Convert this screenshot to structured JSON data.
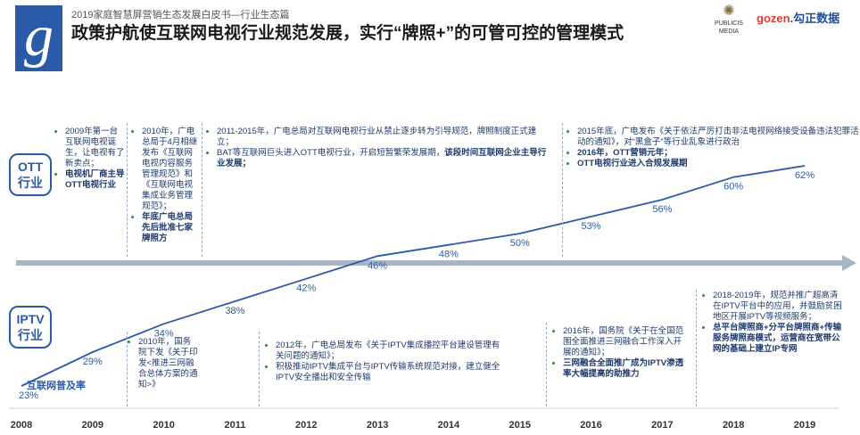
{
  "header": {
    "subtitle": "2019家庭智慧屏营销生态发展白皮书—行业生态篇",
    "title": "政策护航使互联网电视行业规范发展，实行“牌照+”的可管可控的管理模式",
    "logo_letter": "g",
    "brand1_line1": "PUBLICIS",
    "brand1_line2": "MEDIA",
    "brand2_mark": "gozen",
    "brand2_text": ".勾正数据"
  },
  "labels": {
    "ott": "OTT\n行业",
    "iptv": "IPTV\n行业"
  },
  "annotations": {
    "ott_2009": {
      "text1": "2009年第一台互联网电视诞生，让电视有了新卖点；",
      "text2_bold": "电视机厂商主导OTT电视行业"
    },
    "ott_2010": {
      "text1": "2010年，广电总局于4月相继发布《互联网电视内容服务管理规范》和《互联网电视集成业务管理规范》；",
      "text2_bold": "年底广电总局先后批准七家牌照方"
    },
    "ott_2011": {
      "text1": "2011-2015年，广电总局对互联网电视行业从禁止逐步转为引导规范，牌照制度正式建立；",
      "text2": "BAT等互联网巨头进入OTT电视行业，开启短暂繁荣发展期，",
      "text2_bold": "该段时间互联网企业主导行业发展；"
    },
    "ott_2015": {
      "text1": "2015年底，广电发布《关于依法严厉打击非法电视网络接受设备违法犯罪活动的通知》，对“黑盒子”等行业乱象进行政治",
      "text2_bold": "2016年，OTT营销元年；",
      "text3_bold": "OTT电视行业进入合规发展期"
    },
    "iptv_2010": {
      "text1": "2010年，国务院下发《关于印发<推进三网融合总体方案的通知>》"
    },
    "iptv_2012": {
      "text1": "2012年，广电总局发布《关于IPTV集成播控平台建设管理有关问题的通知》；",
      "text2": "积极推动IPTV集成平台与IPTV传输系统规范对接，建立健全IPTV安全播出和安全传输"
    },
    "iptv_2016": {
      "text1": "2016年，国务院《关于在全国范围全面推进三网融合工作深入开展的通知》；",
      "text2_bold": "三网融合全面推广成为IPTV渗透率大幅提高的助推力"
    },
    "iptv_2018": {
      "text1": "2018-2019年，规范并推广超高清在IPTV平台中的应用，并鼓励贫困地区开展IPTV等视频服务；",
      "text2_bold": "总平台牌照商+分平台牌照商+传输服务牌照商模式，运营商在宽带公网的基础上建立IP专网"
    }
  },
  "chart_data": {
    "type": "line",
    "title": "",
    "series": [
      {
        "name": "互联网普及率",
        "x": [
          2008,
          2009,
          2010,
          2011,
          2012,
          2013,
          2014,
          2015,
          2016,
          2017,
          2018,
          2019
        ],
        "values": [
          23,
          29,
          34,
          38,
          42,
          46,
          48,
          50,
          53,
          56,
          60,
          62
        ],
        "labels": [
          "23%",
          "29%",
          "34%",
          "38%",
          "42%",
          "46%",
          "48%",
          "50%",
          "53%",
          "56%",
          "60%",
          "62%"
        ]
      }
    ],
    "x_tick_labels": [
      "2008",
      "2009",
      "2010",
      "2011",
      "2012",
      "2013",
      "2014",
      "2015",
      "2016",
      "2017",
      "2018",
      "2019"
    ],
    "ylim": [
      20,
      65
    ],
    "grid": false,
    "legend": "none",
    "colors": {
      "line": "#2b5aa8",
      "label": "#2b5aa8",
      "arrow": "#a9b4c4"
    }
  }
}
